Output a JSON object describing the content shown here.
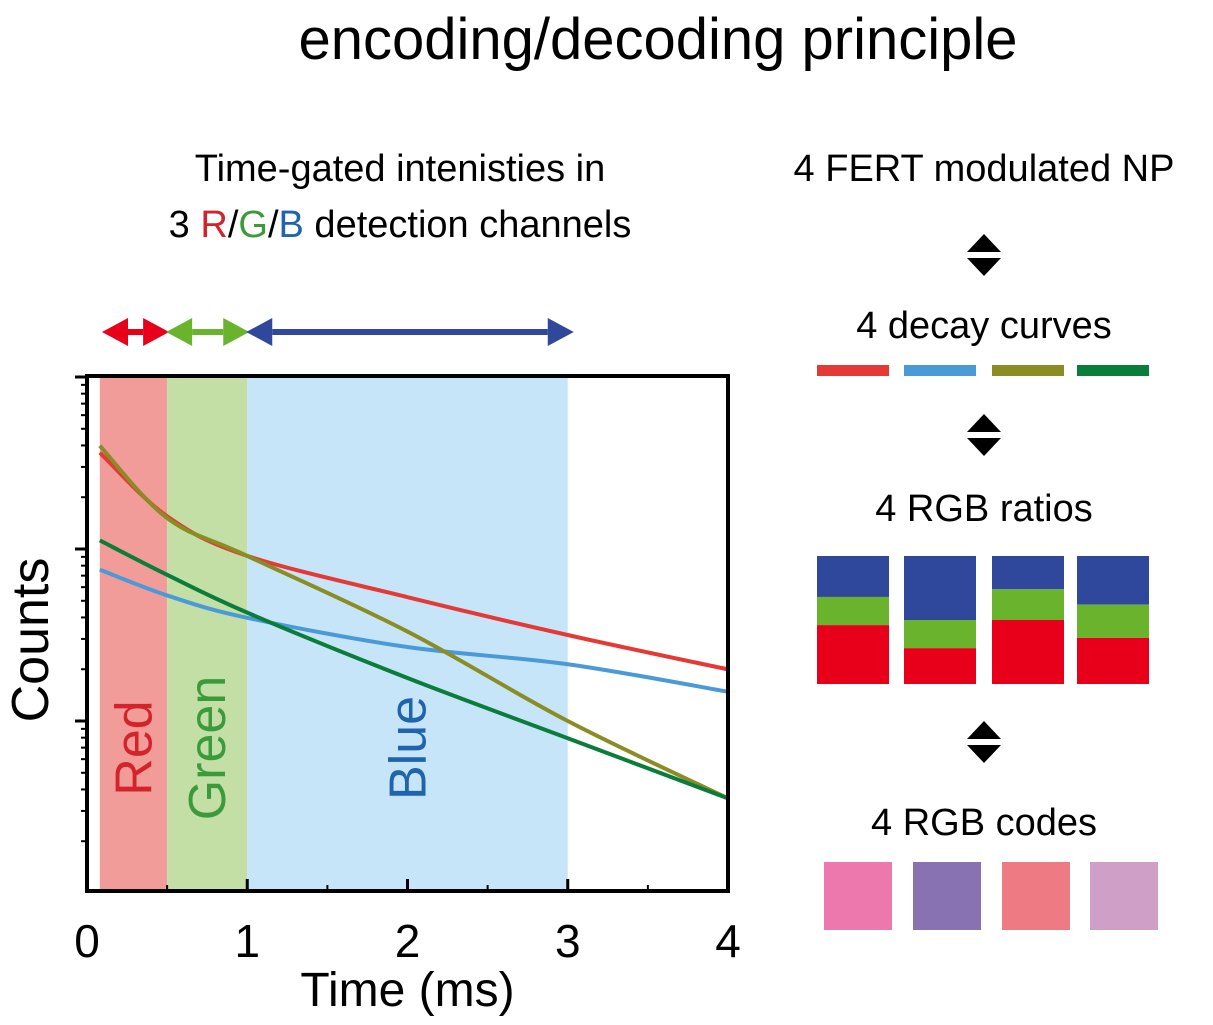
{
  "title": "encoding/decoding principle",
  "gate_caption": {
    "line1": "Time-gated intenisties in",
    "line2_prefix": "3 ",
    "r": "R",
    "slash1": "/",
    "g": "G",
    "slash2": "/",
    "b": "B",
    "line2_suffix": " detection channels"
  },
  "flow": {
    "np_label": "4 FERT modulated NP",
    "decay_label": "4 decay curves",
    "ratios_label": "4 RGB ratios",
    "codes_label": "4 RGB codes",
    "curve_colors": [
      "#e53935",
      "#4a9ad8",
      "#8a8c24",
      "#0a7d3a"
    ],
    "ratios": [
      {
        "blue": 0.32,
        "green": 0.22,
        "red": 0.46
      },
      {
        "blue": 0.5,
        "green": 0.22,
        "red": 0.28
      },
      {
        "blue": 0.26,
        "green": 0.24,
        "red": 0.5
      },
      {
        "blue": 0.38,
        "green": 0.26,
        "red": 0.36
      }
    ],
    "code_colors": [
      "#ec78ad",
      "#8872b2",
      "#ee7a84",
      "#cf9fc8"
    ],
    "channel_colors": {
      "red": "#e8001a",
      "green": "#6ab42d",
      "blue": "#30489b"
    }
  },
  "chart_data": {
    "type": "line",
    "xlabel": "Time (ms)",
    "ylabel": "Counts",
    "xlim": [
      0,
      4
    ],
    "x_ticks": [
      "0",
      "1",
      "2",
      "3",
      "4"
    ],
    "y_scale": "log",
    "gates": [
      {
        "name": "Red",
        "start": 0.08,
        "end": 0.5,
        "color": "#f29c9a",
        "label_color": "#d3232b"
      },
      {
        "name": "Green",
        "start": 0.5,
        "end": 1.0,
        "color": "#c3dfa6",
        "label_color": "#3b9b3c"
      },
      {
        "name": "Blue",
        "start": 1.0,
        "end": 3.0,
        "color": "#c7e5f8",
        "label_color": "#1f64ad"
      }
    ],
    "gate_arrow_colors": [
      "#e8001a",
      "#6ab42d",
      "#30489b"
    ],
    "series": [
      {
        "color": "#e53935",
        "points": [
          [
            0.08,
            1.56
          ],
          [
            0.5,
            1.19
          ],
          [
            1.0,
            0.96
          ],
          [
            2.0,
            0.72
          ],
          [
            3.0,
            0.5
          ],
          [
            4.0,
            0.3
          ]
        ]
      },
      {
        "color": "#4a9ad8",
        "points": [
          [
            0.08,
            0.88
          ],
          [
            0.5,
            0.73
          ],
          [
            1.0,
            0.6
          ],
          [
            2.0,
            0.43
          ],
          [
            3.0,
            0.33
          ],
          [
            4.0,
            0.17
          ]
        ]
      },
      {
        "color": "#8a8c24",
        "points": [
          [
            0.08,
            1.6
          ],
          [
            0.5,
            1.18
          ],
          [
            1.0,
            0.96
          ],
          [
            2.0,
            0.52
          ],
          [
            3.0,
            0.0
          ],
          [
            4.0,
            -0.45
          ]
        ]
      },
      {
        "color": "#0a7d3a",
        "points": [
          [
            0.08,
            1.05
          ],
          [
            0.5,
            0.85
          ],
          [
            1.0,
            0.63
          ],
          [
            2.0,
            0.25
          ],
          [
            3.0,
            -0.1
          ],
          [
            4.0,
            -0.45
          ]
        ]
      }
    ]
  }
}
